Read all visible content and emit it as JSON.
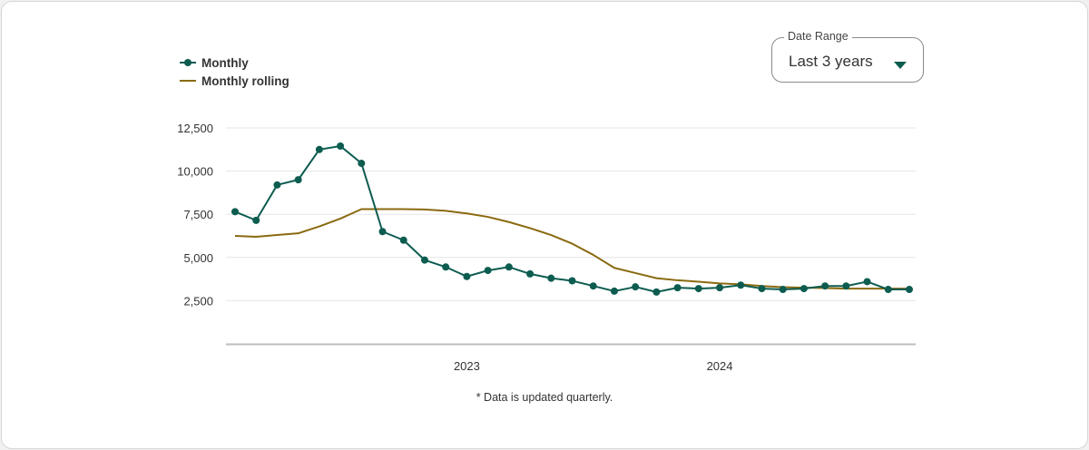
{
  "legend": {
    "monthly_label": "Monthly",
    "rolling_label": "Monthly rolling"
  },
  "date_range": {
    "label": "Date Range",
    "value": "Last 3 years"
  },
  "footnote": "* Data is updated quarterly.",
  "colors": {
    "monthly": "#0d5c50",
    "rolling": "#8a6a10",
    "grid": "#e6e6e6",
    "axis": "#bdbdbd"
  },
  "chart_data": {
    "type": "line",
    "ylim": [
      0,
      12500
    ],
    "yticks": [
      2500,
      5000,
      7500,
      10000,
      12500
    ],
    "ytick_labels": [
      "2,500",
      "5,000",
      "7,500",
      "10,000",
      "12,500"
    ],
    "xticks": [
      {
        "label": "2023",
        "x": "2023-01"
      },
      {
        "label": "2024",
        "x": "2024-01"
      }
    ],
    "grid": true,
    "legend_position": "top-left",
    "series": [
      {
        "name": "Monthly",
        "marker": "circle",
        "x": [
          "2022-02",
          "2022-03",
          "2022-04",
          "2022-05",
          "2022-06",
          "2022-07",
          "2022-08",
          "2022-09",
          "2022-10",
          "2022-11",
          "2022-12",
          "2023-01",
          "2023-02",
          "2023-03",
          "2023-04",
          "2023-05",
          "2023-06",
          "2023-07",
          "2023-08",
          "2023-09",
          "2023-10",
          "2023-11",
          "2023-12",
          "2024-01",
          "2024-02",
          "2024-03",
          "2024-04",
          "2024-05",
          "2024-06",
          "2024-07",
          "2024-08",
          "2024-09",
          "2024-10"
        ],
        "values": [
          7650,
          7150,
          9200,
          9500,
          11250,
          11450,
          10450,
          6500,
          6000,
          4850,
          4450,
          3900,
          4250,
          4450,
          4050,
          3800,
          3650,
          3350,
          3050,
          3300,
          3000,
          3250,
          3200,
          3250,
          3400,
          3200,
          3150,
          3200,
          3350,
          3350,
          3600,
          3150,
          3150
        ]
      },
      {
        "name": "Monthly rolling",
        "marker": "none",
        "x": [
          "2022-02",
          "2022-03",
          "2022-04",
          "2022-05",
          "2022-06",
          "2022-07",
          "2022-08",
          "2022-09",
          "2022-10",
          "2022-11",
          "2022-12",
          "2023-01",
          "2023-02",
          "2023-03",
          "2023-04",
          "2023-05",
          "2023-06",
          "2023-07",
          "2023-08",
          "2023-09",
          "2023-10",
          "2023-11",
          "2023-12",
          "2024-01",
          "2024-02",
          "2024-03",
          "2024-04",
          "2024-05",
          "2024-06",
          "2024-07",
          "2024-08",
          "2024-09",
          "2024-10"
        ],
        "values": [
          6250,
          6200,
          6300,
          6400,
          6800,
          7250,
          7800,
          7800,
          7800,
          7780,
          7700,
          7550,
          7350,
          7050,
          6700,
          6300,
          5800,
          5150,
          4400,
          4100,
          3800,
          3680,
          3600,
          3500,
          3450,
          3350,
          3280,
          3250,
          3230,
          3200,
          3200,
          3200,
          3200
        ]
      }
    ]
  }
}
